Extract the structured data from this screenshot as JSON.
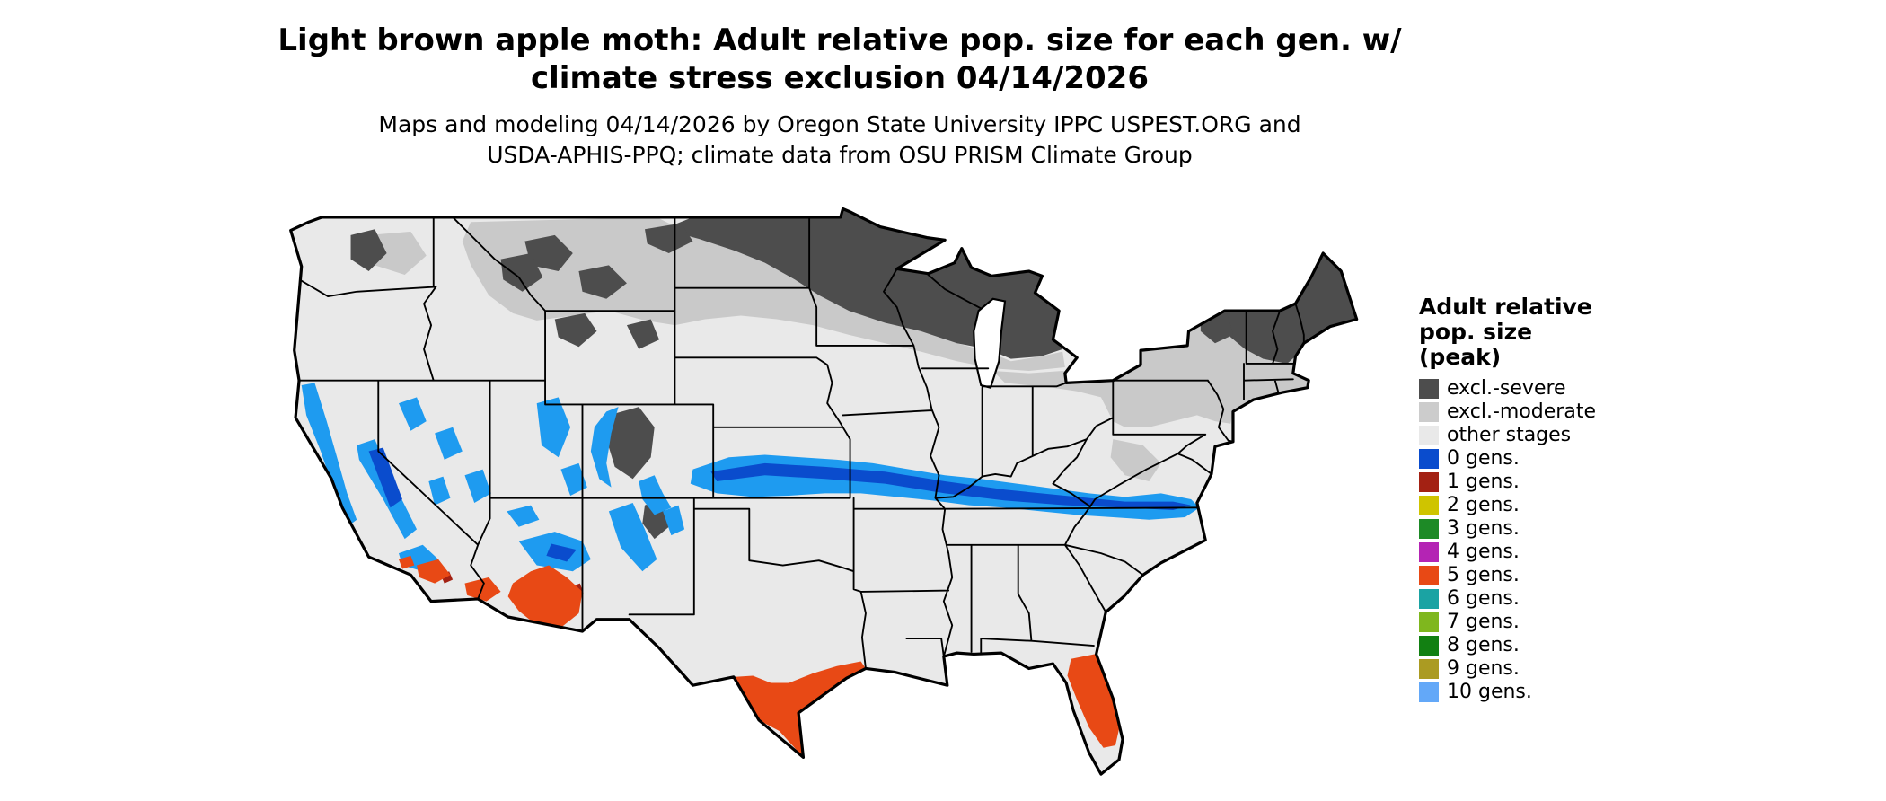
{
  "title": {
    "line1": "Light brown apple moth: Adult relative pop. size for each gen. w/",
    "line2": "climate stress exclusion 04/14/2026"
  },
  "subtitle": {
    "line1": "Maps and modeling 04/14/2026 by Oregon State University IPPC USPEST.ORG and",
    "line2": "USDA-APHIS-PPQ; climate data from OSU PRISM Climate Group"
  },
  "legend": {
    "title_lines": [
      "Adult relative",
      "pop. size",
      "(peak)"
    ],
    "items": [
      {
        "label": "excl.-severe",
        "color": "#4d4d4d"
      },
      {
        "label": "excl.-moderate",
        "color": "#cccccc"
      },
      {
        "label": "other stages",
        "color": "#e9e9e9"
      },
      {
        "label": "0 gens.",
        "color": "#0a4ccd"
      },
      {
        "label": "1 gens.",
        "color": "#a32113"
      },
      {
        "label": "2 gens.",
        "color": "#cfc400"
      },
      {
        "label": "3 gens.",
        "color": "#1d8a26"
      },
      {
        "label": "4 gens.",
        "color": "#b424b4"
      },
      {
        "label": "5 gens.",
        "color": "#e84915"
      },
      {
        "label": "6 gens.",
        "color": "#1ba3a3"
      },
      {
        "label": "7 gens.",
        "color": "#7fb71e"
      },
      {
        "label": "8 gens.",
        "color": "#128012"
      },
      {
        "label": "9 gens.",
        "color": "#ab9b22"
      },
      {
        "label": "10 gens.",
        "color": "#63a8f8"
      }
    ]
  },
  "map_colors": {
    "other_stages": "#e9e9e9",
    "excl_moderate": "#c9c9c9",
    "excl_severe": "#4d4d4d",
    "band_light_blue": "#1e9bf0",
    "band_dark_blue": "#0a4ccd",
    "orange": "#e84915",
    "dark_red": "#a32113",
    "water": "#ffffff",
    "border": "#000000"
  }
}
